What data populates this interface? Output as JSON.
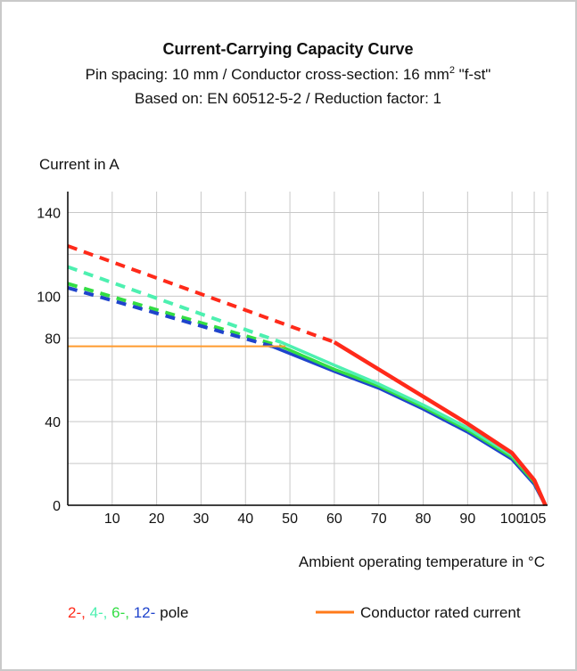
{
  "chart_data": {
    "type": "line",
    "title": "Current-Carrying Capacity Curve",
    "subtitle_1_pre": "Pin spacing: 10 mm / Conductor cross-section: 16 mm",
    "subtitle_1_sup": "2",
    "subtitle_1_post": " \"f-st\"",
    "subtitle_2": "Based on: EN 60512-5-2 / Reduction factor: 1",
    "ylabel": "Current in A",
    "xlabel": "Ambient operating temperature in °C",
    "xlim": [
      0,
      108
    ],
    "ylim": [
      0,
      150
    ],
    "x_ticks": [
      10,
      20,
      30,
      40,
      50,
      60,
      70,
      80,
      90,
      100,
      105
    ],
    "x_tick_labels": [
      "10",
      "20",
      "30",
      "40",
      "50",
      "60",
      "70",
      "80",
      "90",
      "100",
      "105"
    ],
    "y_ticks": [
      0,
      40,
      80,
      100,
      140
    ],
    "y_tick_labels": [
      "0",
      "40",
      "80",
      "100",
      "140"
    ],
    "x_grid": [
      0,
      10,
      20,
      30,
      40,
      50,
      60,
      70,
      80,
      90,
      100,
      105,
      108
    ],
    "y_grid": [
      0,
      20,
      40,
      60,
      80,
      100,
      120,
      140
    ],
    "grid": true,
    "series": [
      {
        "pole": "2-",
        "color": "#ff2a1a",
        "dashed": [
          [
            0,
            124
          ],
          [
            60,
            78
          ]
        ],
        "solid": [
          [
            60,
            78
          ],
          [
            70,
            65
          ],
          [
            80,
            52
          ],
          [
            90,
            39
          ],
          [
            100,
            25
          ],
          [
            105,
            12
          ],
          [
            107.5,
            0
          ]
        ]
      },
      {
        "pole": "4-",
        "color": "#4df0b0",
        "dashed": [
          [
            0,
            114
          ],
          [
            48,
            78
          ]
        ],
        "solid": [
          [
            48,
            78
          ],
          [
            60,
            67
          ],
          [
            70,
            58
          ],
          [
            80,
            48
          ],
          [
            90,
            37
          ],
          [
            100,
            24
          ],
          [
            105,
            12
          ],
          [
            107.5,
            0
          ]
        ]
      },
      {
        "pole": "6-",
        "color": "#33dd44",
        "dashed": [
          [
            0,
            106
          ],
          [
            48,
            76
          ]
        ],
        "solid": [
          [
            48,
            76
          ],
          [
            60,
            65
          ],
          [
            70,
            57
          ],
          [
            80,
            47
          ],
          [
            90,
            36
          ],
          [
            100,
            23
          ],
          [
            105,
            11
          ],
          [
            107.5,
            0
          ]
        ]
      },
      {
        "pole": "12-",
        "color": "#1f44cc",
        "dashed": [
          [
            0,
            104
          ],
          [
            46,
            76
          ]
        ],
        "solid": [
          [
            46,
            76
          ],
          [
            60,
            64
          ],
          [
            70,
            56
          ],
          [
            80,
            46
          ],
          [
            90,
            35
          ],
          [
            100,
            22
          ],
          [
            105,
            10
          ],
          [
            107.5,
            0
          ]
        ]
      }
    ],
    "rated_current": {
      "value": 76,
      "x_end": 49,
      "color": "#ff9a2e",
      "legend_color": "#ff7a1a"
    },
    "legend": {
      "poles": [
        {
          "label": "2-,",
          "color": "#ff2a1a"
        },
        {
          "label": "4-,",
          "color": "#4df0b0"
        },
        {
          "label": "6-,",
          "color": "#33dd44"
        },
        {
          "label": "12-",
          "color": "#1f44cc"
        }
      ],
      "pole_suffix": "pole",
      "rated_label": "Conductor rated current",
      "placement": "bottom"
    }
  }
}
